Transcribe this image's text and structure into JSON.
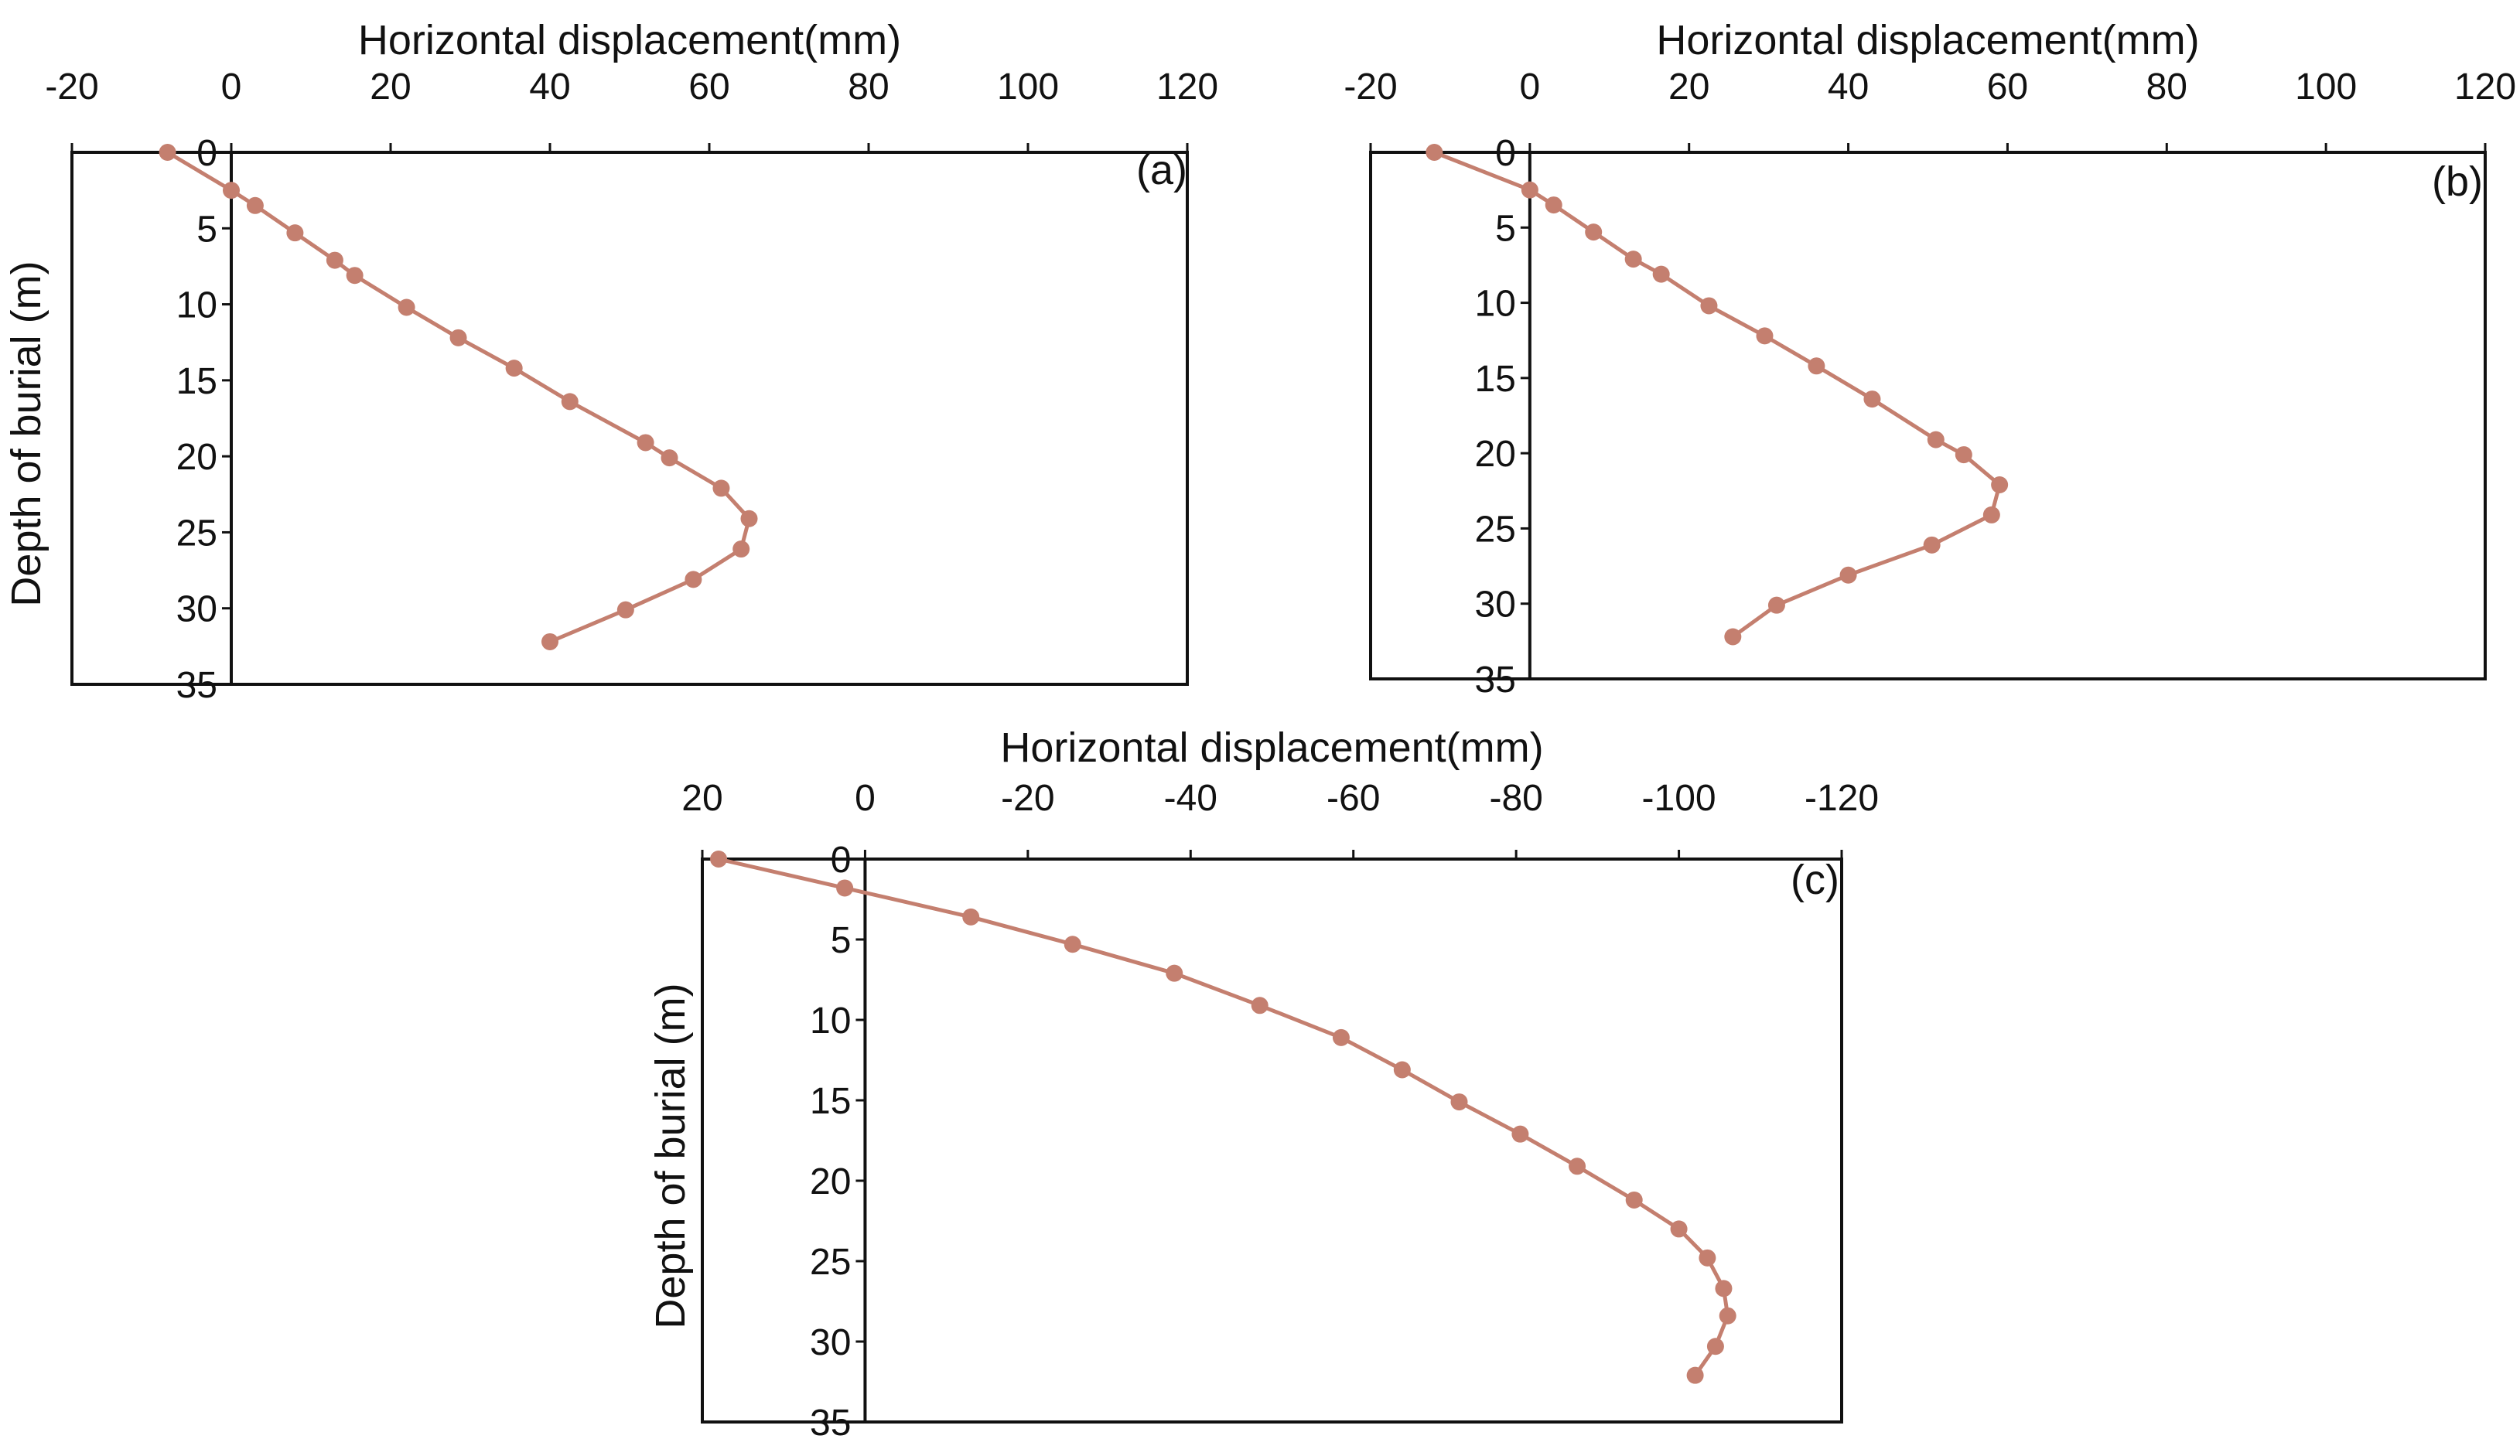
{
  "chart_data": [
    {
      "type": "line",
      "panel_label": "(a)",
      "xlabel": "Horizontal displacement(mm)",
      "ylabel": "Depth of burial (m)",
      "xlim": [
        -20,
        120
      ],
      "ylim": [
        0,
        35
      ],
      "x_axis_position": "top",
      "y_reversed": true,
      "x_ticks": [
        "-20",
        "0",
        "20",
        "40",
        "60",
        "80",
        "100",
        "120"
      ],
      "y_ticks": [
        "0",
        "5",
        "10",
        "15",
        "20",
        "25",
        "30",
        "35"
      ],
      "colors": {
        "line": "#c47f6f",
        "marker": "#c47f6f"
      },
      "series": [
        {
          "x": [
            -8,
            0,
            3,
            8,
            13,
            15.5,
            22,
            28.5,
            35.5,
            42.5,
            52,
            55,
            61.5,
            65,
            64,
            58,
            49.5,
            40
          ],
          "y": [
            0,
            2.5,
            3.5,
            5.3,
            7.1,
            8.1,
            10.2,
            12.2,
            14.2,
            16.4,
            19.1,
            20.1,
            22.1,
            24.1,
            26.1,
            28.1,
            30.1,
            32.2
          ]
        }
      ]
    },
    {
      "type": "line",
      "panel_label": "(b)",
      "xlabel": "Horizontal displacement(mm)",
      "ylabel": "",
      "xlim": [
        -20,
        120
      ],
      "ylim": [
        0,
        35
      ],
      "x_axis_position": "top",
      "y_reversed": true,
      "x_ticks": [
        "-20",
        "0",
        "20",
        "40",
        "60",
        "80",
        "100",
        "120"
      ],
      "y_ticks": [
        "0",
        "5",
        "10",
        "15",
        "20",
        "25",
        "30",
        "35"
      ],
      "colors": {
        "line": "#c47f6f",
        "marker": "#c47f6f"
      },
      "series": [
        {
          "x": [
            -12,
            0,
            3,
            8,
            13,
            16.5,
            22.5,
            29.5,
            36,
            43,
            51,
            54.5,
            59,
            58,
            50.5,
            40,
            31,
            25.5
          ],
          "y": [
            0,
            2.5,
            3.5,
            5.3,
            7.1,
            8.1,
            10.2,
            12.2,
            14.2,
            16.4,
            19.1,
            20.1,
            22.1,
            24.1,
            26.1,
            28.1,
            30.1,
            32.2
          ]
        }
      ]
    },
    {
      "type": "line",
      "panel_label": "(c)",
      "xlabel": "Horizontal displacement(mm)",
      "ylabel": "Depth of burial (m)",
      "xlim": [
        20,
        -120
      ],
      "ylim": [
        0,
        35
      ],
      "x_axis_position": "top",
      "y_reversed": true,
      "x_ticks": [
        "20",
        "0",
        "-20",
        "-40",
        "-60",
        "-80",
        "-100",
        "-120"
      ],
      "y_ticks": [
        "0",
        "5",
        "10",
        "15",
        "20",
        "25",
        "30",
        "35"
      ],
      "colors": {
        "line": "#c47f6f",
        "marker": "#c47f6f"
      },
      "series": [
        {
          "x": [
            18,
            2.5,
            -13,
            -25.5,
            -38,
            -48.5,
            -58.5,
            -66,
            -73,
            -80.5,
            -87.5,
            -94.5,
            -100,
            -103.5,
            -105.5,
            -106,
            -104.5,
            -102
          ],
          "y": [
            0,
            1.8,
            3.6,
            5.3,
            7.1,
            9.1,
            11.1,
            13.1,
            15.1,
            17.1,
            19.1,
            21.2,
            23.0,
            24.8,
            26.7,
            28.4,
            30.3,
            32.1
          ]
        }
      ]
    }
  ]
}
